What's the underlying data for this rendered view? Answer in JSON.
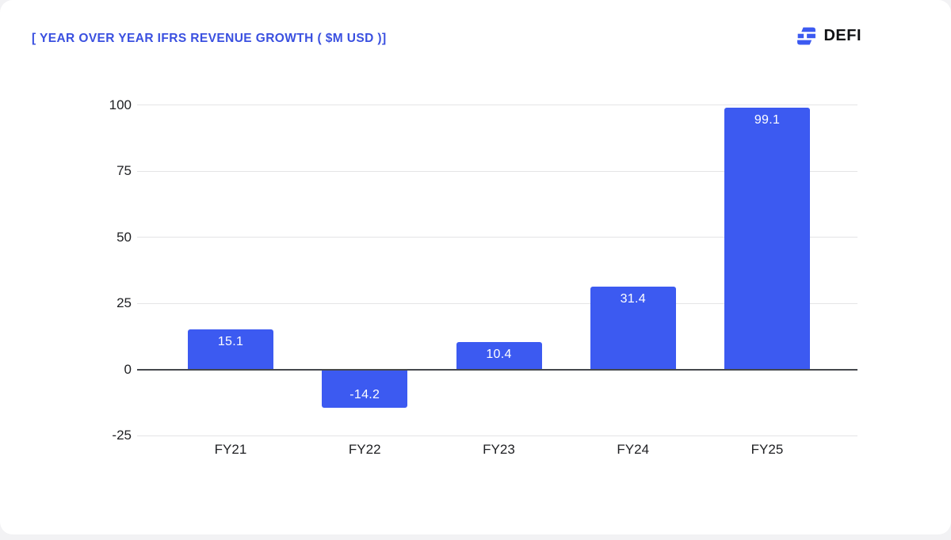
{
  "header": {
    "title": "[ YEAR OVER YEAR IFRS REVENUE GROWTH ( $M USD )]",
    "logo_text": "DEFI",
    "logo_icon": "defi-brick-icon"
  },
  "colors": {
    "bar": "#3c5af1",
    "title": "#3a50e0",
    "grid": "#e4e4e6",
    "zero_axis": "#45484d",
    "tick_label": "#202124",
    "value_label": "#ffffff",
    "logo_blue": "#3c5af1",
    "logo_text": "#101114",
    "card_background": "#ffffff"
  },
  "chart_data": {
    "type": "bar",
    "title": "[ YEAR OVER YEAR IFRS REVENUE GROWTH ( $M USD )]",
    "categories": [
      "FY21",
      "FY22",
      "FY23",
      "FY24",
      "FY25"
    ],
    "values": [
      15.1,
      -14.2,
      10.4,
      31.4,
      99.1
    ],
    "value_labels": [
      "15.1",
      "-14.2",
      "10.4",
      "31.4",
      "99.1"
    ],
    "value_label_position": "inside-end",
    "xlabel": "",
    "ylabel": "",
    "ylim": [
      -25,
      100
    ],
    "yticks": [
      100,
      75,
      50,
      25,
      0,
      -25
    ],
    "grid": true,
    "legend": "none",
    "series_color": "#3c5af1"
  }
}
